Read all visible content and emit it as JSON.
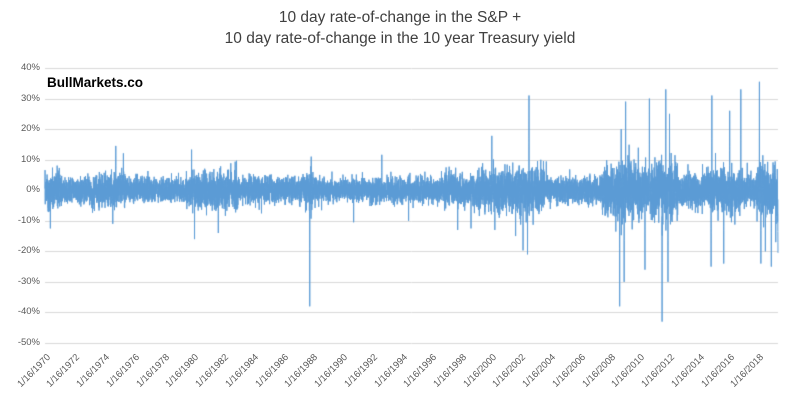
{
  "chart": {
    "title_line1": "10 day rate-of-change in the S&P +",
    "title_line2": "10 day rate-of-change in the 10 year Treasury yield",
    "watermark": "BullMarkets.co"
  },
  "chart_data": {
    "type": "line",
    "title": "10 day rate-of-change in the S&P + 10 day rate-of-change in the 10 year Treasury yield",
    "series_name": "10-day ROC of S&P plus 10-day ROC of 10-year Treasury yield",
    "sampling": "daily",
    "legend": "none",
    "grid": "horizontal",
    "line_color": "#5B9BD5",
    "grid_color": "#D9D9D9",
    "axis_text_color": "#595959",
    "title_color": "#404040",
    "watermark_color": "#000000",
    "background_color": "#FFFFFF",
    "x_axis": {
      "start_year": 1970.04,
      "end_year": 2019.35,
      "label_rotation_deg": 45,
      "tick_labels": [
        "1/16/1970",
        "1/16/1972",
        "1/16/1974",
        "1/16/1976",
        "1/16/1978",
        "1/16/1980",
        "1/16/1982",
        "1/16/1984",
        "1/16/1986",
        "1/16/1988",
        "1/16/1990",
        "1/16/1992",
        "1/16/1994",
        "1/16/1996",
        "1/16/1998",
        "1/16/2000",
        "1/16/2002",
        "1/16/2004",
        "1/16/2006",
        "1/16/2008",
        "1/16/2010",
        "1/16/2012",
        "1/16/2014",
        "1/16/2016",
        "1/16/2018"
      ]
    },
    "y_axis": {
      "min": -50,
      "max": 40,
      "step": 10,
      "unit": "%",
      "tick_labels": [
        "40%",
        "30%",
        "20%",
        "10%",
        "0%",
        "-10%",
        "-20%",
        "-30%",
        "-40%",
        "-50%"
      ]
    },
    "volatility_profile": [
      {
        "from": 1970.0,
        "to": 1971.2,
        "sigma_pct": 2.6
      },
      {
        "from": 1971.2,
        "to": 1973.0,
        "sigma_pct": 2.0
      },
      {
        "from": 1973.0,
        "to": 1975.5,
        "sigma_pct": 2.6
      },
      {
        "from": 1975.5,
        "to": 1979.5,
        "sigma_pct": 1.9
      },
      {
        "from": 1979.5,
        "to": 1983.0,
        "sigma_pct": 2.7
      },
      {
        "from": 1983.0,
        "to": 1987.6,
        "sigma_pct": 2.1
      },
      {
        "from": 1987.6,
        "to": 1988.3,
        "sigma_pct": 3.0
      },
      {
        "from": 1988.3,
        "to": 1996.9,
        "sigma_pct": 1.8
      },
      {
        "from": 1996.9,
        "to": 1999.0,
        "sigma_pct": 2.5
      },
      {
        "from": 1999.0,
        "to": 2001.5,
        "sigma_pct": 3.0
      },
      {
        "from": 2001.5,
        "to": 2003.6,
        "sigma_pct": 3.4
      },
      {
        "from": 2003.6,
        "to": 2007.5,
        "sigma_pct": 2.0
      },
      {
        "from": 2007.5,
        "to": 2012.6,
        "sigma_pct": 4.3
      },
      {
        "from": 2012.6,
        "to": 2014.6,
        "sigma_pct": 2.7
      },
      {
        "from": 2014.6,
        "to": 2016.9,
        "sigma_pct": 3.5
      },
      {
        "from": 2016.9,
        "to": 2017.9,
        "sigma_pct": 2.4
      },
      {
        "from": 2017.9,
        "to": 2019.35,
        "sigma_pct": 3.6
      }
    ],
    "notable_extremes": [
      {
        "t": 1970.4,
        "pct": -12.5
      },
      {
        "t": 1974.6,
        "pct": -11.0
      },
      {
        "t": 1974.8,
        "pct": 14.5
      },
      {
        "t": 1979.9,
        "pct": 13.3
      },
      {
        "t": 1980.1,
        "pct": -16.0
      },
      {
        "t": 1981.7,
        "pct": -14.0
      },
      {
        "t": 1987.85,
        "pct": -38.0
      },
      {
        "t": 1987.95,
        "pct": 11.0
      },
      {
        "t": 1990.8,
        "pct": -10.5
      },
      {
        "t": 1992.7,
        "pct": 11.6
      },
      {
        "t": 1994.5,
        "pct": -10.0
      },
      {
        "t": 1997.8,
        "pct": -13.0
      },
      {
        "t": 1998.7,
        "pct": -12.5
      },
      {
        "t": 2000.1,
        "pct": 17.8
      },
      {
        "t": 2000.3,
        "pct": -13.0
      },
      {
        "t": 2001.7,
        "pct": -15.0
      },
      {
        "t": 2002.2,
        "pct": -19.7
      },
      {
        "t": 2002.5,
        "pct": -21.0
      },
      {
        "t": 2002.6,
        "pct": 31.0
      },
      {
        "t": 2008.7,
        "pct": -38.0
      },
      {
        "t": 2008.8,
        "pct": 20.0
      },
      {
        "t": 2009.0,
        "pct": -30.0
      },
      {
        "t": 2009.1,
        "pct": 29.0
      },
      {
        "t": 2010.4,
        "pct": -26.0
      },
      {
        "t": 2010.7,
        "pct": 30.0
      },
      {
        "t": 2011.55,
        "pct": -43.0
      },
      {
        "t": 2011.8,
        "pct": 33.0
      },
      {
        "t": 2011.95,
        "pct": -30.0
      },
      {
        "t": 2012.05,
        "pct": 25.0
      },
      {
        "t": 2014.85,
        "pct": -25.0
      },
      {
        "t": 2014.9,
        "pct": 31.0
      },
      {
        "t": 2015.7,
        "pct": -24.0
      },
      {
        "t": 2016.1,
        "pct": 26.0
      },
      {
        "t": 2016.85,
        "pct": 33.0
      },
      {
        "t": 2018.1,
        "pct": 35.5
      },
      {
        "t": 2018.2,
        "pct": -24.0
      },
      {
        "t": 2018.5,
        "pct": -20.0
      },
      {
        "t": 2018.9,
        "pct": -25.0
      },
      {
        "t": 2019.2,
        "pct": -17.0
      },
      {
        "t": 2019.33,
        "pct": -21.0
      }
    ]
  }
}
